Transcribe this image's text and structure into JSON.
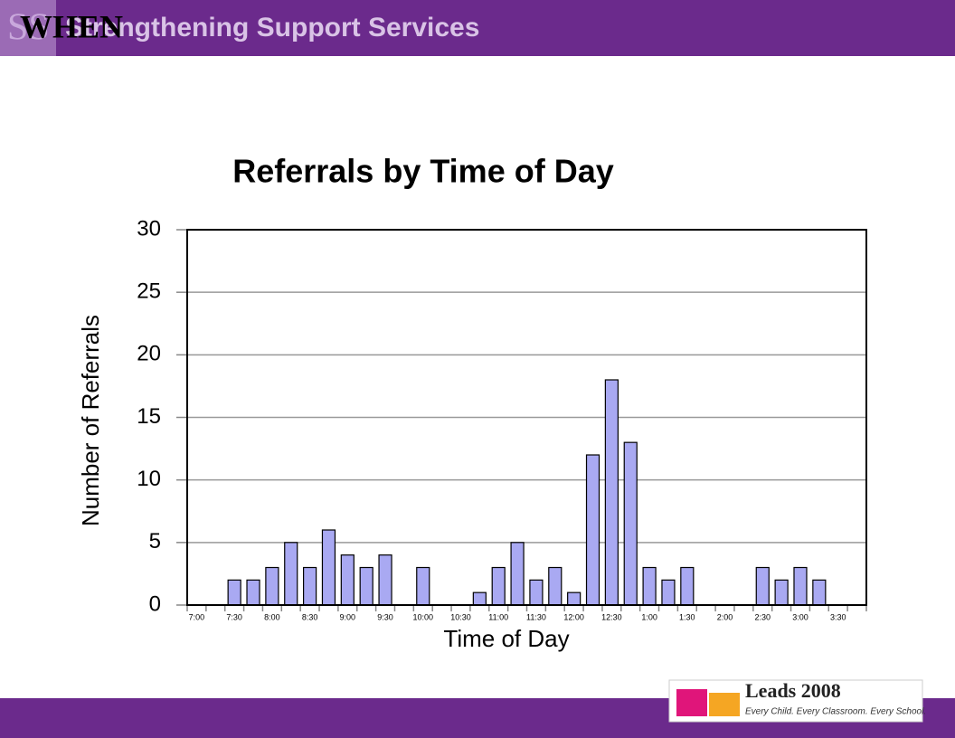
{
  "header": {
    "logo": "SS",
    "title": "Strengthening Support Services",
    "heading": "WHEN"
  },
  "footer": {
    "logo": "Leads 2008",
    "tagline": "Every Child. Every Classroom. Every School."
  },
  "chart_data": {
    "type": "bar",
    "title": "Referrals by Time of Day",
    "x_label": "Time of Day",
    "y_label": "Number of Referrals",
    "categories": [
      "7:00",
      null,
      "7:30",
      null,
      "8:00",
      null,
      "8:30",
      null,
      "9:00",
      null,
      "9:30",
      null,
      "10:00",
      null,
      "10:30",
      null,
      "11:00",
      null,
      "11:30",
      null,
      "12:00",
      null,
      "12:30",
      null,
      "1:00",
      null,
      "1:30",
      null,
      "2:00",
      null,
      "2:30",
      null,
      "3:00",
      null,
      "3:30",
      null
    ],
    "values": [
      0,
      0,
      2,
      2,
      3,
      5,
      3,
      6,
      4,
      3,
      4,
      0,
      3,
      0,
      0,
      1,
      3,
      5,
      2,
      3,
      1,
      12,
      18,
      13,
      3,
      2,
      3,
      0,
      0,
      0,
      3,
      2,
      3,
      2,
      0,
      0
    ],
    "color": "#a9a9f2",
    "ylim": [
      0,
      30
    ],
    "yticks": [
      0,
      5,
      10,
      15,
      20,
      25,
      30
    ],
    "grid": true
  }
}
